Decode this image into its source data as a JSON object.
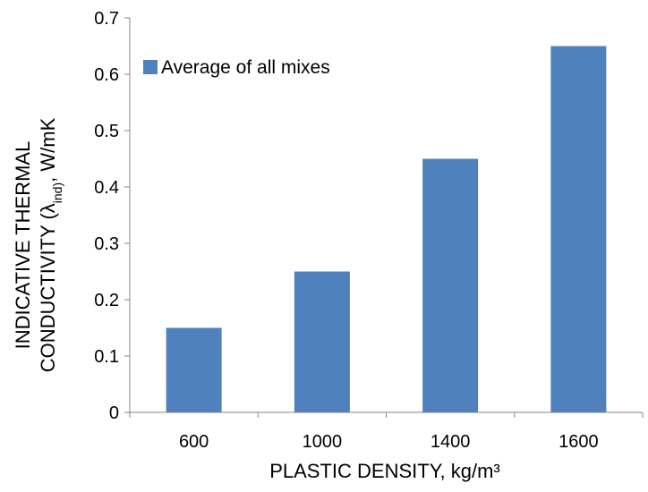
{
  "chart_data": {
    "type": "bar",
    "categories": [
      "600",
      "1000",
      "1400",
      "1600"
    ],
    "series": [
      {
        "name": "Average of all mixes",
        "values": [
          0.15,
          0.25,
          0.45,
          0.65
        ],
        "color": "#4F81BD"
      }
    ],
    "xlabel": "PLASTIC DENSITY, kg/m³",
    "ylabel": {
      "line1": "INDICATIVE THERMAL",
      "line2_prefix": "CONDUCTIVITY (λ",
      "line2_subscript": "ind)",
      "line2_suffix": ", W/mK"
    },
    "yticks": [
      "0",
      "0.1",
      "0.2",
      "0.3",
      "0.4",
      "0.5",
      "0.6",
      "0.7"
    ],
    "ylim": [
      0,
      0.7
    ],
    "grid": false,
    "legend": {
      "position": "top-left",
      "label": "Average of all mixes"
    },
    "colors": {
      "bar": "#4F81BD",
      "axis": "#868686",
      "text": "#000000"
    }
  }
}
